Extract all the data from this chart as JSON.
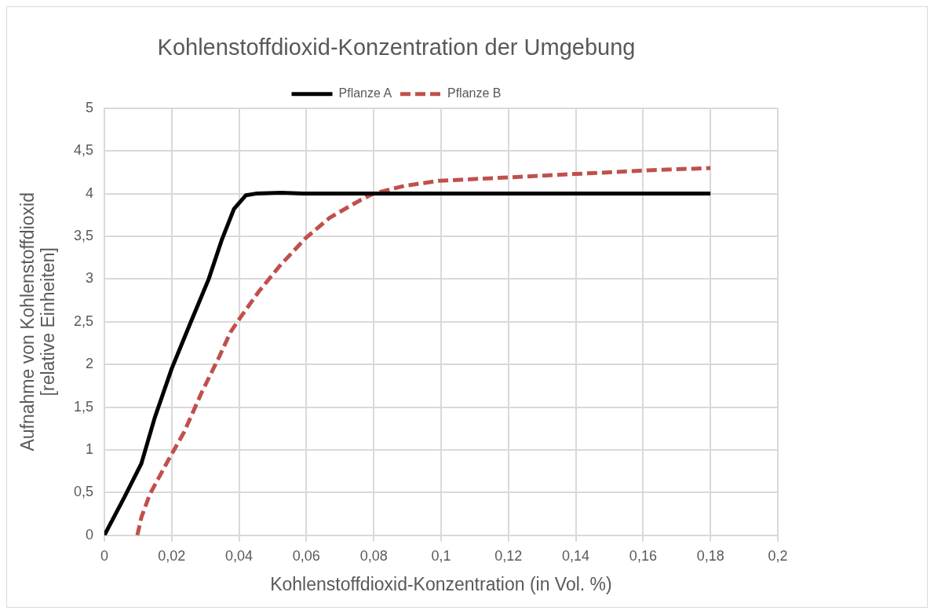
{
  "chart_data": {
    "type": "line",
    "title": "Kohlenstoffdioxid-Konzentration der Umgebung",
    "xlabel": "Kohlenstoffdioxid-Konzentration (in Vol. %)",
    "ylabel": [
      "Aufnahme von Kohlenstoffdioxid",
      "[relative Einheiten]"
    ],
    "xlim": [
      0,
      0.2
    ],
    "xticks": [
      0,
      {
        "value": 0.02,
        "label": "0,02"
      },
      {
        "value": 0.04,
        "label": "0,04"
      },
      {
        "value": 0.06,
        "label": "0,06"
      },
      {
        "value": 0.08,
        "label": "0,08"
      },
      {
        "value": 0.1,
        "label": "0,1"
      },
      {
        "value": 0.12,
        "label": "0,12"
      },
      {
        "value": 0.14,
        "label": "0,14"
      },
      {
        "value": 0.16,
        "label": "0,16"
      },
      {
        "value": 0.18,
        "label": "0,18"
      },
      {
        "value": 0.2,
        "label": "0,2"
      }
    ],
    "ylim": [
      0,
      5
    ],
    "yticks": [
      0,
      {
        "value": 0.5,
        "label": "0,5"
      },
      1,
      {
        "value": 1.5,
        "label": "1,5"
      },
      2,
      {
        "value": 2.5,
        "label": "2,5"
      },
      3,
      {
        "value": 3.5,
        "label": "3,5"
      },
      4,
      {
        "value": 4.5,
        "label": "4,5"
      },
      5
    ],
    "grid": true,
    "legend": "top",
    "marker": "none",
    "series": [
      {
        "name": "Pflanze A",
        "color": "#000000",
        "line_style": "solid",
        "x": [
          0,
          0.006,
          0.011,
          0.015,
          0.02,
          0.0255,
          0.031,
          0.0348,
          0.0385,
          0.042,
          0.045,
          0.0525,
          0.059,
          0.08,
          0.12,
          0.18
        ],
        "values": [
          0,
          0.45,
          0.84,
          1.38,
          1.95,
          2.48,
          3.0,
          3.45,
          3.82,
          3.98,
          4.0,
          4.01,
          4.0,
          4.0,
          4.0,
          4.0
        ]
      },
      {
        "name": "Pflanze B",
        "color": "#c0504d",
        "line_style": "dashed",
        "x": [
          0.0098,
          0.011,
          0.0135,
          0.019,
          0.0237,
          0.029,
          0.034,
          0.0375,
          0.0404,
          0.0458,
          0.052,
          0.0598,
          0.067,
          0.0763,
          0.08,
          0.089,
          0.0994,
          0.12,
          0.14,
          0.16,
          0.18
        ],
        "values": [
          0,
          0.21,
          0.48,
          0.88,
          1.21,
          1.68,
          2.08,
          2.38,
          2.55,
          2.85,
          3.15,
          3.48,
          3.72,
          3.93,
          4.0,
          4.09,
          4.15,
          4.19,
          4.23,
          4.27,
          4.3
        ]
      }
    ]
  }
}
